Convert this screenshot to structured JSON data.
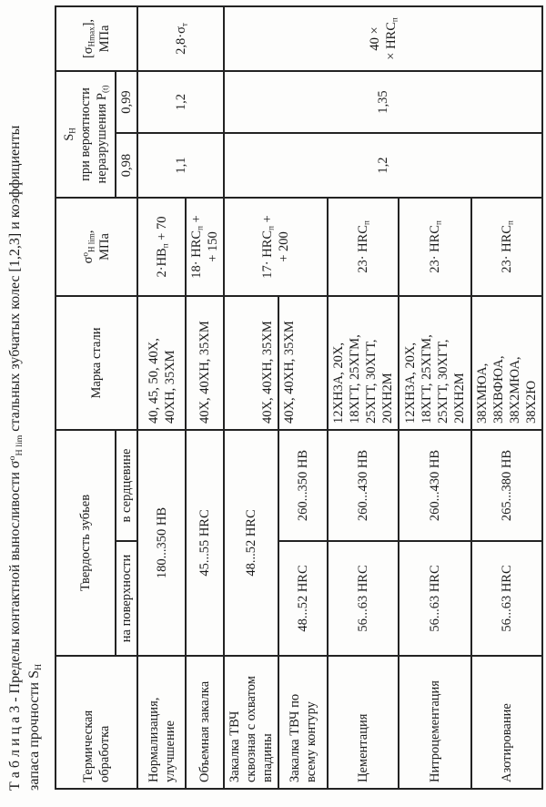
{
  "title": {
    "line1": [
      {
        "t": "Т а б л и ц а  3 -  Пределы контактной выносливости  "
      },
      {
        "t": "σ"
      },
      {
        "sup": "о"
      },
      {
        "sub": "H lim"
      },
      {
        "t": "  стальных зубчатых колес [1,2,3] и коэффициенты"
      }
    ],
    "line2": [
      {
        "t": "запаса прочности "
      },
      {
        "t": "S"
      },
      {
        "sub": "Н"
      }
    ]
  },
  "table": {
    "headers": {
      "heat_treatment": "Термическая обработка",
      "tooth_hardness": "Твердость зубьев",
      "surface": "на поверхности",
      "core": "в сердцевине",
      "steel_grade": "Марка стали",
      "sigma_h_lim": [
        {
          "t": "σ"
        },
        {
          "sup": "о"
        },
        {
          "sub": "H lim"
        },
        {
          "t": ","
        },
        {
          "br": true
        },
        {
          "t": "МПа"
        }
      ],
      "s_h": [
        {
          "t": "S"
        },
        {
          "sub": "Н"
        },
        {
          "br": true
        },
        {
          "t": "при вероятности"
        },
        {
          "br": true
        },
        {
          "t": "неразрушения Р"
        },
        {
          "sub": "(t)"
        }
      ],
      "p_098": "0,98",
      "p_099": "0,99",
      "sigma_h_max": [
        {
          "t": "[σ"
        },
        {
          "sub": "Hmax"
        },
        {
          "t": "],"
        },
        {
          "br": true
        },
        {
          "t": "МПа"
        }
      ]
    },
    "rows": [
      {
        "treatment": "Нормализация, улучшение",
        "hardness_full": "180...350 НВ",
        "steel": "40, 45, 50, 40Х, 40ХН, 35ХМ",
        "sigma_h_lim": [
          {
            "t": "2·НВ"
          },
          {
            "sub": "п"
          },
          {
            "t": " + 70"
          }
        ]
      },
      {
        "treatment": "Объемная закалка",
        "hardness_full": "45...55 HRC",
        "steel": "40Х, 40ХН, 35ХМ",
        "sigma_h_lim": [
          {
            "t": "18· HRC"
          },
          {
            "sub": "п"
          },
          {
            "t": " +"
          },
          {
            "br": true
          },
          {
            "t": "+ 150"
          }
        ]
      },
      {
        "treatment": "Закалка ТВЧ сквозная с охватом впадины",
        "hardness_full": "48...52 HRC",
        "steel": "40Х, 40ХН, 35ХМ",
        "sigma_h_lim": [
          {
            "t": "17· HRC"
          },
          {
            "sub": "п"
          },
          {
            "t": " +"
          },
          {
            "br": true
          },
          {
            "t": "+ 200"
          }
        ]
      },
      {
        "treatment": "Закалка ТВЧ по всему контуру",
        "surface": "48...52 HRC",
        "core": "260...350 НВ",
        "steel": "40Х, 40ХН, 35ХМ"
      },
      {
        "treatment": "Цементация",
        "surface": "56...63 HRC",
        "core": "260...430 НВ",
        "steel": "12ХН3А, 20Х, 18ХГТ, 25ХГМ, 25ХГТ, 30ХГТ, 20ХН2М",
        "sigma_h_lim": [
          {
            "t": "23· HRC"
          },
          {
            "sub": "п"
          }
        ]
      },
      {
        "treatment": "Нитроцементация",
        "surface": "56...63 HRC",
        "core": "260...430 НВ",
        "steel": "12ХН3А, 20Х, 18ХГТ, 25ХГМ, 25ХГТ, 30ХГТ, 20ХН2М",
        "sigma_h_lim": [
          {
            "t": "23· HRC"
          },
          {
            "sub": "п"
          }
        ]
      },
      {
        "treatment": "Азотирование",
        "surface": "56...63 HRC",
        "core": "265...380 НВ",
        "steel": "38ХМЮА, 38ХВФЮА, 38Х2МЮА, 38Х2Ю",
        "sigma_h_lim": [
          {
            "t": "23· HRC"
          },
          {
            "sub": "п"
          }
        ]
      }
    ],
    "merged": {
      "s_098_rows12": "1,1",
      "s_099_rows12": "1,2",
      "sigma_max_rows12": [
        {
          "t": "2,8·σ"
        },
        {
          "sub": "т"
        }
      ],
      "s_098_rows37": "1,2",
      "s_099_rows37": "1,35",
      "sigma_max_rows37": [
        {
          "t": "40 ×"
        },
        {
          "br": true
        },
        {
          "t": "× HRC"
        },
        {
          "sub": "п"
        }
      ]
    }
  },
  "colors": {
    "ink": "#1c1c1c",
    "paper": "#fdfdfc"
  }
}
